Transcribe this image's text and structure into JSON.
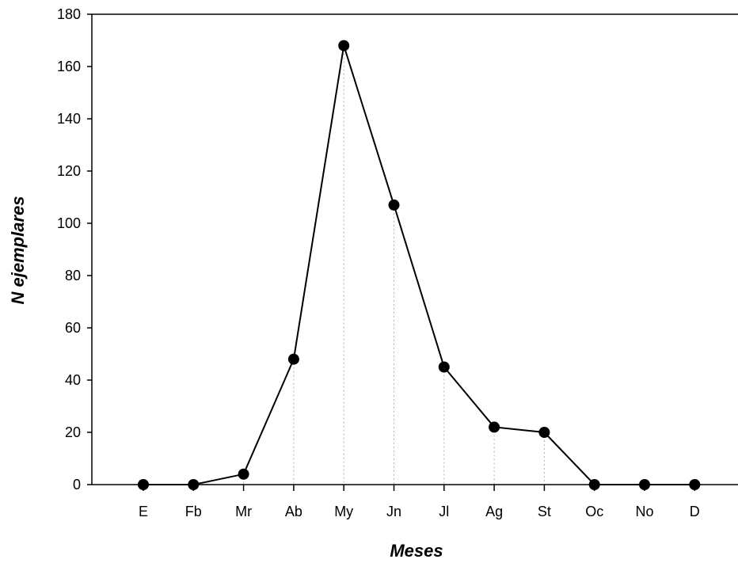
{
  "chart_data": {
    "type": "line",
    "title": "",
    "xlabel": "Meses",
    "ylabel": "N ejemplares",
    "categories": [
      "E",
      "Fb",
      "Mr",
      "Ab",
      "My",
      "Jn",
      "Jl",
      "Ag",
      "St",
      "Oc",
      "No",
      "D"
    ],
    "series": [
      {
        "values": [
          0,
          0,
          4,
          48,
          168,
          107,
          45,
          22,
          20,
          0,
          0,
          0
        ]
      }
    ],
    "ylim": [
      0,
      180
    ],
    "yticks": [
      0,
      20,
      40,
      60,
      80,
      100,
      120,
      140,
      160,
      180
    ],
    "grid": false,
    "drop_lines": true,
    "legend": "none",
    "colors": {
      "line": "#000000",
      "marker": "#000000",
      "drop_line": "#b0b0b0"
    }
  }
}
